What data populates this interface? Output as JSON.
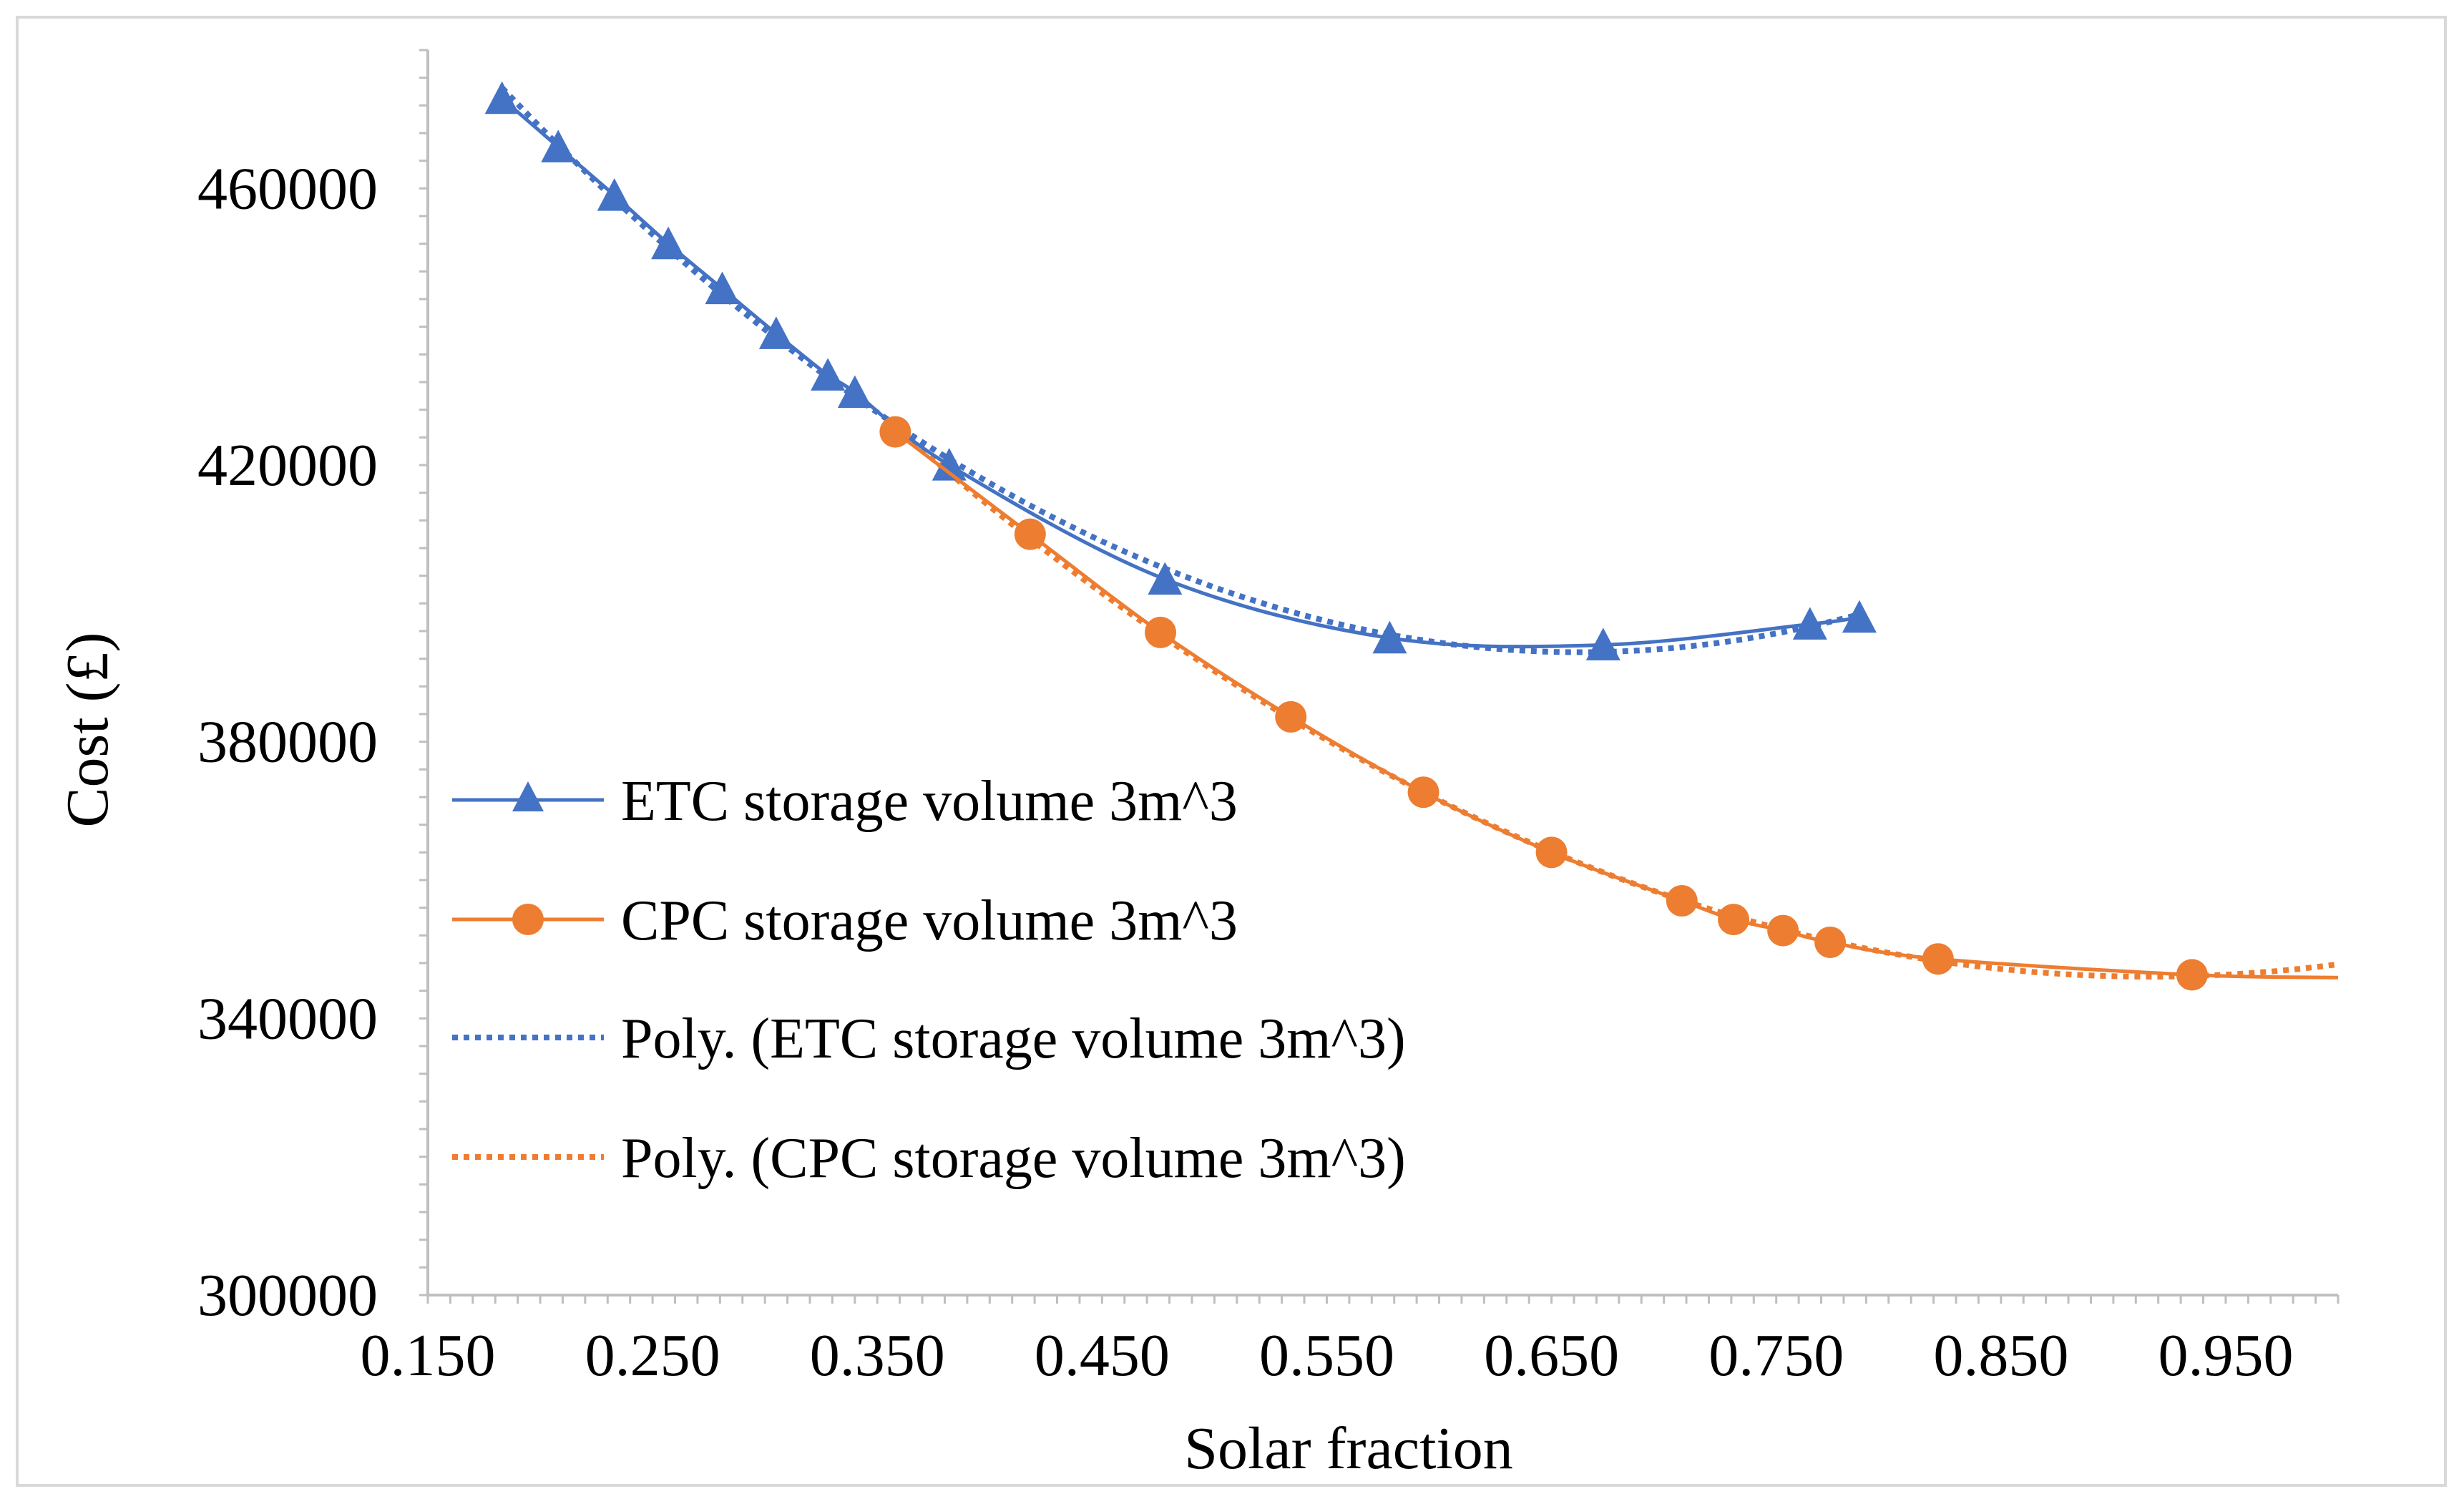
{
  "chart_data": {
    "type": "line",
    "title": "",
    "xlabel": "Solar fraction",
    "ylabel": "Cost (£)",
    "xlim": [
      0.15,
      1.0
    ],
    "ylim": [
      300000,
      480000
    ],
    "x_ticks": [
      0.15,
      0.25,
      0.35,
      0.45,
      0.55,
      0.65,
      0.75,
      0.85,
      0.95
    ],
    "x_tick_labels": [
      "0.150",
      "0.250",
      "0.350",
      "0.450",
      "0.550",
      "0.650",
      "0.750",
      "0.850",
      "0.950"
    ],
    "y_ticks": [
      300000,
      340000,
      380000,
      420000,
      460000
    ],
    "y_tick_labels": [
      "300000",
      "340000",
      "380000",
      "420000",
      "460000"
    ],
    "series": [
      {
        "name": "ETC storage volume 3m^3",
        "color": "#4472c4",
        "marker": "triangle",
        "line": "solid",
        "x": [
          0.183,
          0.208,
          0.233,
          0.257,
          0.281,
          0.305,
          0.328,
          0.34,
          0.382,
          0.478,
          0.578,
          0.673,
          0.765,
          0.787
        ],
        "y": [
          473000,
          466000,
          459000,
          452000,
          445500,
          439000,
          433000,
          430500,
          420000,
          403500,
          395000,
          394000,
          397000,
          398000
        ]
      },
      {
        "name": "CPC storage volume 3m^3",
        "color": "#ed7d31",
        "marker": "circle",
        "line": "solid",
        "x": [
          0.358,
          0.418,
          0.476,
          0.534,
          0.593,
          0.65,
          0.708,
          0.731,
          0.753,
          0.774,
          0.822,
          0.935
        ],
        "y": [
          424800,
          410000,
          395800,
          383600,
          372700,
          364000,
          357000,
          354300,
          352700,
          351000,
          348600,
          346300
        ]
      },
      {
        "name": "Poly. (ETC storage volume 3m^3)",
        "color": "#4472c4",
        "marker": "none",
        "line": "dotted",
        "trend_of": "ETC storage volume 3m^3"
      },
      {
        "name": "Poly. (CPC storage volume 3m^3)",
        "color": "#ed7d31",
        "marker": "none",
        "line": "dotted",
        "trend_of": "CPC storage volume 3m^3"
      }
    ],
    "legend_position": "left-inside",
    "grid": false
  }
}
